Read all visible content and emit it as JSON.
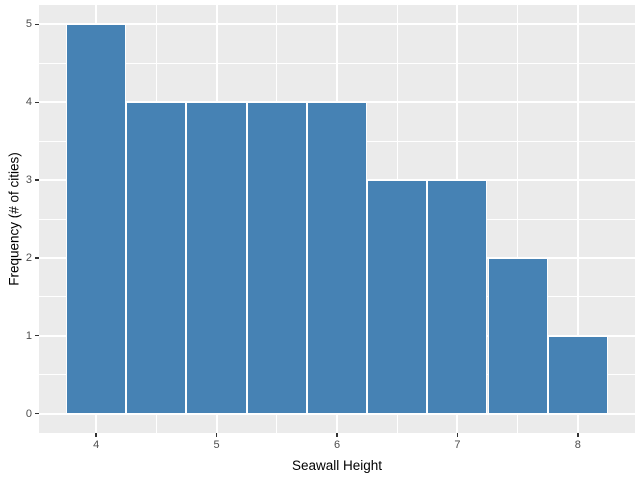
{
  "chart_data": {
    "type": "bar",
    "subtype": "histogram",
    "title": "",
    "xlabel": "Seawall Height",
    "ylabel": "Frequency (# of cities)",
    "bin_centers": [
      4,
      4.5,
      5,
      5.5,
      6,
      6.5,
      7,
      7.5,
      8
    ],
    "bin_width": 0.5,
    "values": [
      5,
      4,
      4,
      4,
      4,
      3,
      3,
      2,
      1
    ],
    "x_tick_labels": [
      "4",
      "5",
      "6",
      "7",
      "8"
    ],
    "x_ticks": [
      4,
      5,
      6,
      7,
      8
    ],
    "y_tick_labels": [
      "0",
      "1",
      "2",
      "3",
      "4",
      "5"
    ],
    "y_ticks": [
      0,
      1,
      2,
      3,
      4,
      5
    ],
    "xlim": [
      3.525,
      8.475
    ],
    "ylim": [
      -0.25,
      5.25
    ],
    "grid": "major and minor gridlines, white on gray panel",
    "legend": "none",
    "colors": {
      "bar_fill": "#4682B4",
      "bar_stroke": "#FFFFFF",
      "panel_bg": "#EBEBEB",
      "grid_major": "#FFFFFF",
      "grid_minor": "#FFFFFF",
      "tick_label": "#4D4D4D",
      "axis_title": "#000000",
      "tick_mark": "#333333",
      "outer_bg": "#FFFFFF"
    }
  }
}
